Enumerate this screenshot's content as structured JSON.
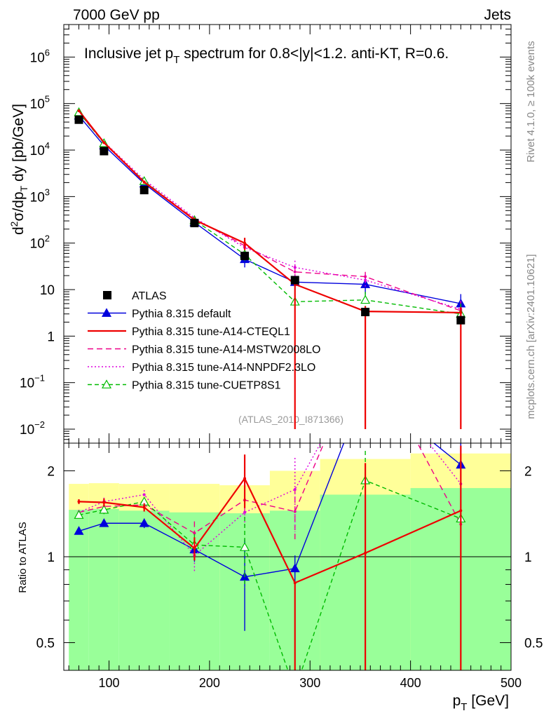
{
  "header": {
    "left": "7000 GeV pp",
    "right": "Jets"
  },
  "side_labels": {
    "rivet": "Rivet 4.1.0, ≥ 100k events",
    "mcplots": "mcplots.cern.ch [arXiv:2401.10621]"
  },
  "colors": {
    "atlas": "#000000",
    "default": "#0000dd",
    "cteql1": "#ee0000",
    "mstw": "#ee0088",
    "nnpdf": "#dd00dd",
    "cuetp8s1": "#00bb00",
    "band_outer": "#ffff99",
    "band_inner": "#99ff99"
  },
  "chart_data": [
    {
      "type": "line",
      "title_main": "Inclusive jet p",
      "title_sub": "T",
      "title_rest": " spectrum for 0.8<|y|<1.2.  anti-KT, R=0.6.",
      "ylabel": "d²σ/dp_T dy [pb/GeV]",
      "ylabel_parts": {
        "d": "d",
        "sup2": "2",
        "mid": "σ/dp",
        "subT": "T",
        "rest": " dy [pb/GeV]"
      },
      "yscale": "log",
      "xlim": [
        55,
        500
      ],
      "ylim": [
        0.005,
        5000000
      ],
      "y_tick_labels": [
        {
          "v": 1000000,
          "base": "10",
          "exp": "6"
        },
        {
          "v": 100000,
          "base": "10",
          "exp": "5"
        },
        {
          "v": 10000,
          "base": "10",
          "exp": "4"
        },
        {
          "v": 1000,
          "base": "10",
          "exp": "3"
        },
        {
          "v": 100,
          "base": "10",
          "exp": "2"
        },
        {
          "v": 10,
          "base": "10",
          "exp": ""
        },
        {
          "v": 1,
          "base": "1",
          "exp": ""
        },
        {
          "v": 0.1,
          "base": "10",
          "exp": "−1"
        },
        {
          "v": 0.01,
          "base": "10",
          "exp": "−2"
        }
      ],
      "analysis_label": "(ATLAS_2010_I871366)",
      "x": [
        70,
        95,
        135,
        185,
        235,
        285,
        355,
        450
      ],
      "x_edges": [
        60,
        80,
        110,
        160,
        210,
        260,
        310,
        400,
        500
      ],
      "series": [
        {
          "name": "ATLAS",
          "style": "data",
          "color_key": "atlas",
          "values": [
            45000,
            9500,
            1380,
            270,
            53,
            16,
            3.3,
            2.2
          ]
        },
        {
          "name": "Pythia 8.315 default",
          "style": "solid-triangle",
          "color_key": "default",
          "values": [
            55000,
            12500,
            1900,
            280,
            45,
            14.5,
            13,
            5
          ],
          "err_up": [
            4000,
            1000,
            150,
            40,
            15,
            5,
            5,
            3
          ],
          "err_dn": [
            4000,
            1000,
            150,
            40,
            15,
            5,
            5,
            3
          ]
        },
        {
          "name": "Pythia 8.315 tune-A14-CTEQL1",
          "style": "solid",
          "color_key": "cteql1",
          "values": [
            70000,
            14500,
            2050,
            315,
            100,
            13,
            3.4,
            3.2
          ],
          "err_up": [
            4000,
            1000,
            150,
            40,
            30,
            5,
            1,
            1
          ],
          "err_dn": [
            4000,
            1000,
            150,
            40,
            30,
            12.99,
            3.39,
            3.19
          ]
        },
        {
          "name": "Pythia 8.315 tune-A14-MSTW2008LO",
          "style": "dashed",
          "color_key": "mstw",
          "values": [
            66000,
            14000,
            2100,
            330,
            88,
            24,
            19,
            3.5
          ],
          "err_up": [
            4000,
            1000,
            150,
            40,
            20,
            10,
            5,
            2
          ],
          "err_dn": [
            4000,
            1000,
            150,
            40,
            20,
            10,
            5,
            2
          ]
        },
        {
          "name": "Pythia 8.315 tune-A14-NNPDF2.3LO",
          "style": "dotted",
          "color_key": "nnpdf",
          "values": [
            66000,
            15000,
            2300,
            350,
            80,
            30,
            16,
            3.8
          ],
          "err_up": [
            4000,
            1000,
            150,
            40,
            20,
            12,
            5,
            2
          ],
          "err_dn": [
            4000,
            1000,
            150,
            40,
            20,
            12,
            5,
            2
          ]
        },
        {
          "name": "Pythia 8.315 tune-CUETP8S1",
          "style": "dashed-open-triangle",
          "color_key": "cuetp8s1",
          "values": [
            65000,
            14000,
            2150,
            310,
            57,
            5.5,
            6,
            3
          ],
          "err_up": [
            4000,
            1000,
            150,
            40,
            15,
            3,
            3,
            2
          ],
          "err_dn": [
            4000,
            1000,
            150,
            40,
            15,
            5.49,
            5.99,
            2.99
          ]
        }
      ]
    },
    {
      "type": "line",
      "ylabel": "Ratio to ATLAS",
      "xlabel_main": "p",
      "xlabel_sub": "T",
      "xlabel_rest": " [GeV]",
      "yscale": "log",
      "ylim": [
        0.4,
        2.5
      ],
      "xlim": [
        55,
        500
      ],
      "x_ticks": [
        100,
        200,
        300,
        400,
        500
      ],
      "y_ticks": [
        0.5,
        1,
        2
      ],
      "y_tick_labels": [
        "0.5",
        "1",
        "2"
      ],
      "x": [
        70,
        95,
        135,
        185,
        235,
        285,
        355,
        450
      ],
      "bands": {
        "edges": [
          60,
          80,
          110,
          160,
          210,
          260,
          310,
          400,
          500
        ],
        "outer_lo": [
          0.65,
          0.64,
          0.65,
          0.65,
          0.65,
          0.5,
          0.3,
          0.3
        ],
        "outer_hi": [
          1.8,
          1.81,
          1.8,
          1.8,
          1.78,
          2.0,
          2.2,
          2.3
        ],
        "inner_lo": [
          0.35,
          0.35,
          0.35,
          0.35,
          0.35,
          0.35,
          0.35,
          0.35
        ],
        "inner_hi": [
          1.46,
          1.47,
          1.45,
          1.43,
          1.42,
          1.45,
          1.65,
          1.74
        ]
      },
      "series": [
        {
          "name": "Pythia 8.315 default",
          "style": "solid-triangle",
          "color_key": "default",
          "values": [
            1.23,
            1.31,
            1.31,
            1.06,
            0.85,
            0.91,
            3.9,
            2.1
          ],
          "err_up": [
            0.02,
            0.03,
            0.05,
            0.1,
            0.3,
            0.1,
            0.5,
            0.4
          ],
          "err_dn": [
            0.02,
            0.03,
            0.05,
            0.1,
            0.3,
            0.1,
            0.5,
            1.4
          ]
        },
        {
          "name": "Pythia 8.315 tune-A14-CTEQL1",
          "style": "solid",
          "color_key": "cteql1",
          "values": [
            1.56,
            1.55,
            1.49,
            1.07,
            1.88,
            0.81,
            1.03,
            1.45
          ],
          "err_up": [
            0.03,
            0.05,
            0.05,
            0.1,
            0.4,
            0.0,
            1.1,
            1.0
          ],
          "err_dn": [
            0.03,
            0.05,
            0.05,
            0.1,
            0.4,
            0.42,
            0.64,
            1.06
          ]
        },
        {
          "name": "Pythia 8.315 tune-A14-MSTW2008LO",
          "style": "dashed",
          "color_key": "mstw",
          "values": [
            1.43,
            1.5,
            1.52,
            1.21,
            1.58,
            1.44,
            5.5,
            1.3
          ],
          "err_up": [
            0.03,
            0.05,
            0.05,
            0.12,
            0.15,
            0.3,
            0,
            0.3
          ],
          "err_dn": [
            0.03,
            0.05,
            0.05,
            0.12,
            0.15,
            0.3,
            0,
            0.3
          ]
        },
        {
          "name": "Pythia 8.315 tune-A14-NNPDF2.3LO",
          "style": "dotted",
          "color_key": "nnpdf",
          "values": [
            1.43,
            1.56,
            1.65,
            1.01,
            1.43,
            1.72,
            4.8,
            1.8
          ],
          "err_up": [
            0.03,
            0.05,
            0.06,
            0.12,
            0.15,
            0.5,
            0,
            0.3
          ],
          "err_dn": [
            0.03,
            0.05,
            0.06,
            0.12,
            0.15,
            0.5,
            0,
            0.3
          ]
        },
        {
          "name": "Pythia 8.315 tune-CUETP8S1",
          "style": "dashed-open-triangle",
          "color_key": "cuetp8s1",
          "values": [
            1.4,
            1.46,
            1.56,
            1.1,
            1.08,
            0.34,
            1.85,
            1.36
          ],
          "err_up": [
            0.03,
            0.05,
            0.05,
            0.1,
            0.3,
            0.1,
            0.5,
            0.5
          ],
          "err_dn": [
            0.03,
            0.05,
            0.05,
            0.1,
            0.3,
            0.1,
            1.5,
            0.9
          ]
        }
      ]
    }
  ]
}
